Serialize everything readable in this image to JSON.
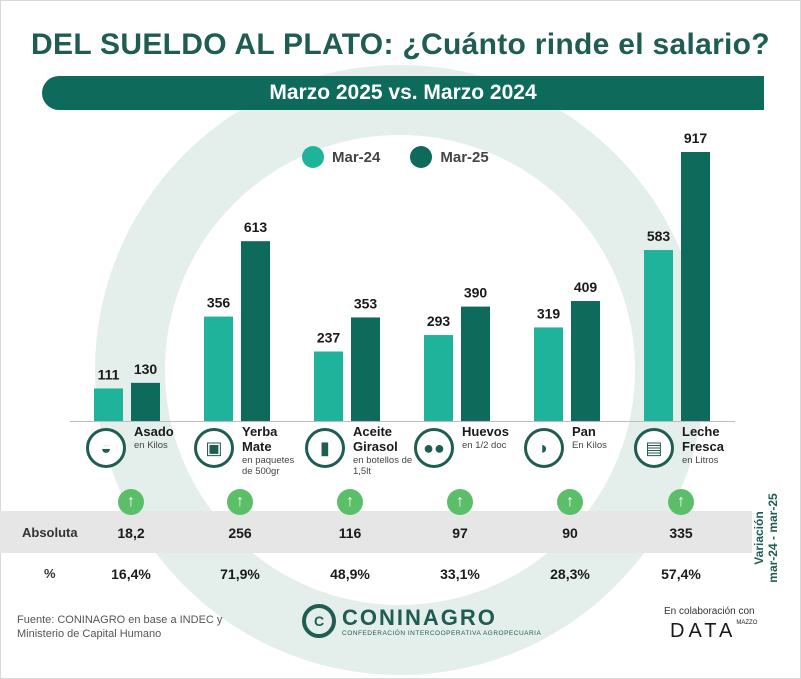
{
  "title": "DEL SUELDO AL PLATO: ¿Cuánto rinde el salario?",
  "subtitle": "Marzo 2025 vs. Marzo 2024",
  "colors": {
    "series1": "#1fb39b",
    "series2": "#0e6a5b",
    "accent": "#1f5c52",
    "arrow": "#5bbf6a"
  },
  "chart_data": {
    "type": "bar",
    "categories": [
      "Asado",
      "Yerba Mate",
      "Aceite Girasol",
      "Huevos",
      "Pan",
      "Leche Fresca"
    ],
    "series": [
      {
        "name": "Mar-24",
        "values": [
          111,
          356,
          237,
          293,
          319,
          583
        ]
      },
      {
        "name": "Mar-25",
        "values": [
          130,
          613,
          353,
          390,
          409,
          917
        ]
      }
    ],
    "ylim": [
      0,
      917
    ],
    "grid": false,
    "legend": "top-center"
  },
  "categories": [
    {
      "name": "Asado",
      "unit": "en Kilos",
      "icon": "meat-icon"
    },
    {
      "name": "Yerba Mate",
      "unit": "en paquetes de 500gr",
      "icon": "yerba-icon"
    },
    {
      "name": "Aceite Girasol",
      "unit": "en botellos de 1,5lt",
      "icon": "oil-bottle-icon"
    },
    {
      "name": "Huevos",
      "unit": "en 1/2 doc",
      "icon": "eggs-icon"
    },
    {
      "name": "Pan",
      "unit": "En Kilos",
      "icon": "bread-icon"
    },
    {
      "name": "Leche Fresca",
      "unit": "en Litros",
      "icon": "milk-icon"
    }
  ],
  "variation": {
    "abs_label": "Absoluta",
    "pct_label": "%",
    "absolute": [
      "18,2",
      "256",
      "116",
      "97",
      "90",
      "335"
    ],
    "percent": [
      "16,4%",
      "71,9%",
      "48,9%",
      "33,1%",
      "28,3%",
      "57,4%"
    ],
    "side_label_1": "Variación",
    "side_label_2": "mar-24 - mar-25",
    "arrow_symbol": "↑"
  },
  "footer": {
    "source": "Fuente: CONINAGRO en base a INDEC y Ministerio de Capital Humano",
    "logo_name": "CONINAGRO",
    "logo_sub": "CONFEDERACIÓN INTERCOOPERATIVA AGROPECUARIA",
    "collab": "En colaboración con",
    "data_logo": "DATA",
    "data_logo_sub": "MAZZO"
  }
}
